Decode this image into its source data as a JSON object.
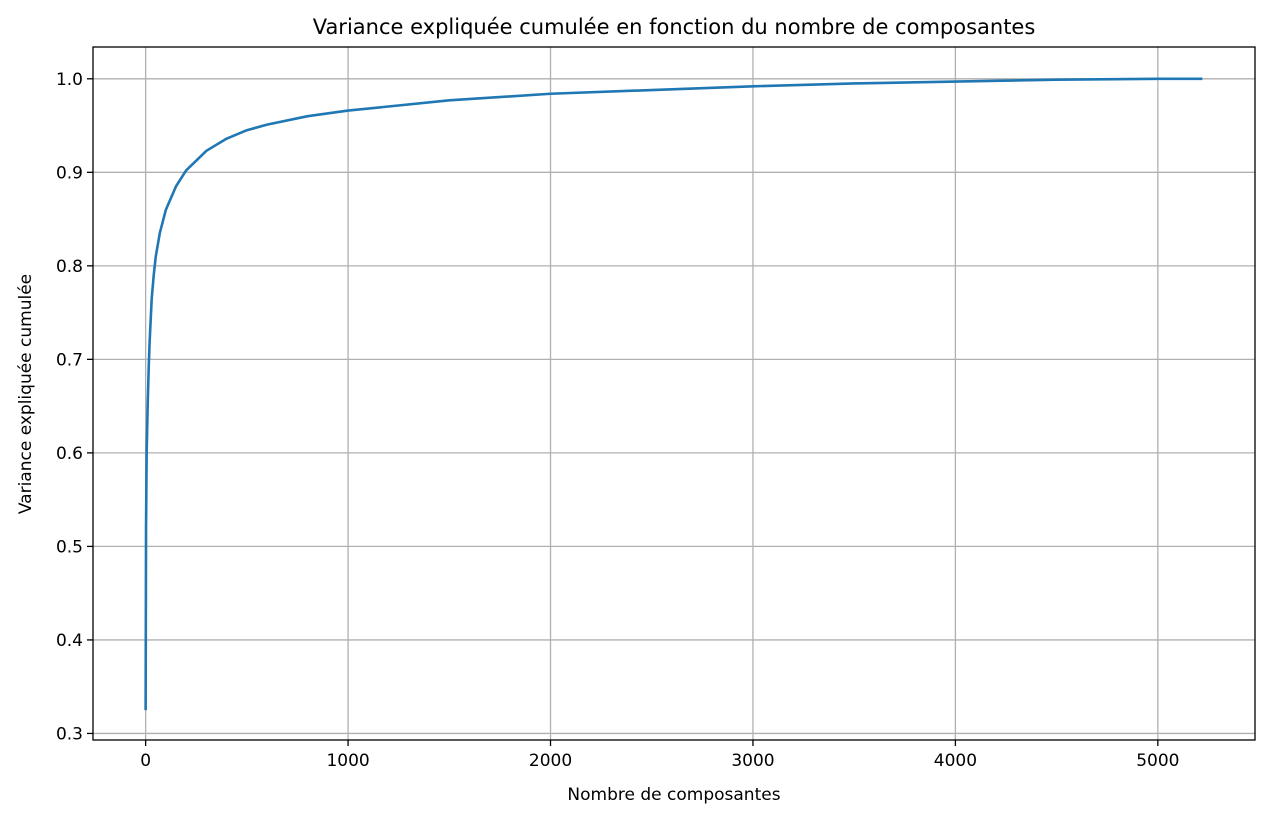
{
  "chart_data": {
    "type": "line",
    "title": "Variance expliquée cumulée en fonction du nombre de composantes",
    "xlabel": "Nombre de composantes",
    "ylabel": "Variance expliquée cumulée",
    "xlim": [
      -260,
      5480
    ],
    "ylim": [
      0.293,
      1.034
    ],
    "grid": true,
    "xticks": [
      0,
      1000,
      2000,
      3000,
      4000,
      5000
    ],
    "xtick_labels": [
      "0",
      "1000",
      "2000",
      "3000",
      "4000",
      "5000"
    ],
    "yticks": [
      0.3,
      0.4,
      0.5,
      0.6,
      0.7,
      0.8,
      0.9,
      1.0
    ],
    "ytick_labels": [
      "0.3",
      "0.4",
      "0.5",
      "0.6",
      "0.7",
      "0.8",
      "0.9",
      "1.0"
    ],
    "series": [
      {
        "color": "#1f77b4",
        "x": [
          0,
          2,
          5,
          10,
          15,
          20,
          30,
          40,
          50,
          70,
          100,
          150,
          200,
          300,
          400,
          500,
          600,
          800,
          1000,
          1500,
          2000,
          2500,
          3000,
          3500,
          4000,
          4500,
          5000,
          5220
        ],
        "y": [
          0.325,
          0.52,
          0.6,
          0.65,
          0.69,
          0.72,
          0.765,
          0.79,
          0.81,
          0.835,
          0.86,
          0.885,
          0.902,
          0.923,
          0.936,
          0.945,
          0.951,
          0.96,
          0.966,
          0.977,
          0.984,
          0.988,
          0.992,
          0.995,
          0.997,
          0.999,
          1.0,
          1.0
        ]
      }
    ]
  }
}
